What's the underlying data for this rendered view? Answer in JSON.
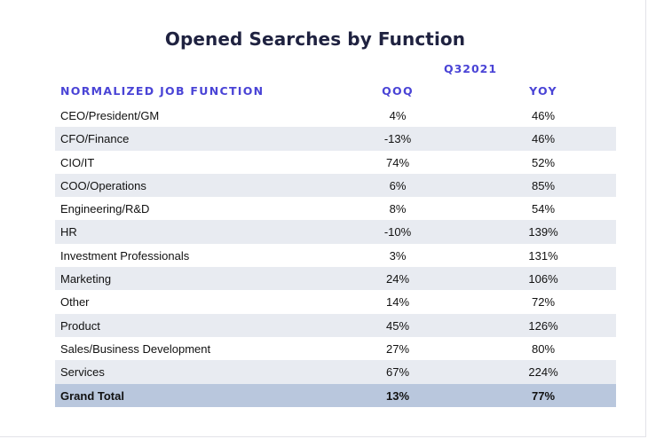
{
  "title": "Opened Searches by Function",
  "period": "Q32021",
  "columns": {
    "function": "NORMALIZED JOB FUNCTION",
    "qoq": "QOQ",
    "yoy": "YOY"
  },
  "rows": [
    {
      "function": "CEO/President/GM",
      "qoq": "4%",
      "yoy": "46%"
    },
    {
      "function": "CFO/Finance",
      "qoq": "-13%",
      "yoy": "46%"
    },
    {
      "function": "CIO/IT",
      "qoq": "74%",
      "yoy": "52%"
    },
    {
      "function": "COO/Operations",
      "qoq": "6%",
      "yoy": "85%"
    },
    {
      "function": "Engineering/R&D",
      "qoq": "8%",
      "yoy": "54%"
    },
    {
      "function": "HR",
      "qoq": "-10%",
      "yoy": "139%"
    },
    {
      "function": "Investment Professionals",
      "qoq": "3%",
      "yoy": "131%"
    },
    {
      "function": "Marketing",
      "qoq": "24%",
      "yoy": "106%"
    },
    {
      "function": "Other",
      "qoq": "14%",
      "yoy": "72%"
    },
    {
      "function": "Product",
      "qoq": "45%",
      "yoy": "126%"
    },
    {
      "function": "Sales/Business Development",
      "qoq": "27%",
      "yoy": "80%"
    },
    {
      "function": "Services",
      "qoq": "67%",
      "yoy": "224%"
    }
  ],
  "total": {
    "function": "Grand Total",
    "qoq": "13%",
    "yoy": "77%"
  },
  "colors": {
    "title": "#1f2240",
    "header": "#4a44d6",
    "alt_row": "#e8ebf1",
    "total_row": "#b9c7dd"
  }
}
